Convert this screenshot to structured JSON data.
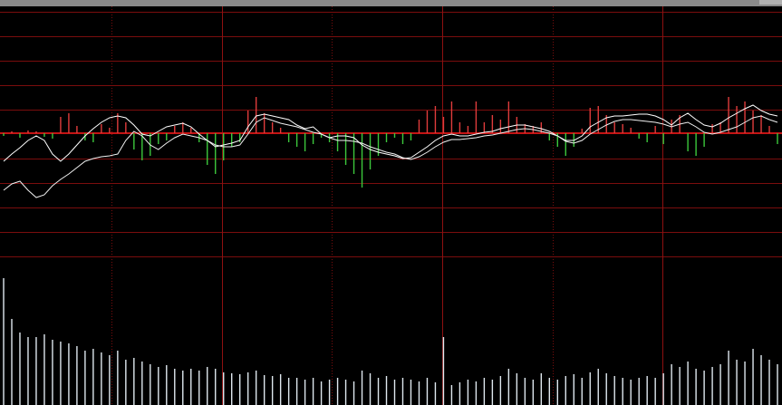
{
  "chart_data": [
    {
      "type": "line",
      "ylim": [
        -140,
        140
      ],
      "color": "#e03c3c",
      "negative_color": "#3cc83c",
      "series": [
        {
          "type": "bar",
          "color": "#e03c3c",
          "values": [
            -3,
            2,
            -5,
            3,
            2,
            -4,
            -6,
            18,
            22,
            8,
            -8,
            -10,
            10,
            6,
            22,
            12,
            -18,
            -30,
            -25,
            -12,
            -8,
            8,
            12,
            6,
            -10,
            -35,
            -45,
            -30,
            -15,
            -10,
            25,
            40,
            22,
            12,
            6,
            -10,
            -15,
            -20,
            -12,
            -5,
            -10,
            -20,
            -35,
            -45,
            -60,
            -40,
            -25,
            -10,
            -5,
            -12,
            -8,
            15,
            25,
            30,
            18,
            35,
            12,
            8,
            35,
            12,
            20,
            15,
            35,
            18,
            10,
            8,
            12,
            -8,
            -15,
            -25,
            -15,
            5,
            28,
            30,
            20,
            12,
            10,
            6,
            -6,
            -10,
            8,
            -12,
            15,
            20,
            -20,
            -25,
            -15,
            10,
            12,
            40,
            30,
            35,
            25,
            20,
            8,
            -12
          ]
        },
        {
          "type": "line",
          "color": "#ffffff",
          "values": [
            -31,
            -23,
            -16,
            -8,
            -3,
            -8,
            -23,
            -31,
            -23,
            -13,
            -3,
            5,
            12,
            17,
            19,
            17,
            9,
            -1,
            -3,
            2,
            7,
            9,
            11,
            7,
            -1,
            -8,
            -15,
            -13,
            -11,
            -8,
            7,
            19,
            21,
            19,
            17,
            15,
            9,
            5,
            7,
            -1,
            -5,
            -3,
            -3,
            -5,
            -13,
            -18,
            -21,
            -23,
            -25,
            -28,
            -27,
            -21,
            -15,
            -8,
            -3,
            -1,
            -3,
            -3,
            -1,
            1,
            2,
            5,
            7,
            9,
            9,
            7,
            5,
            2,
            -3,
            -8,
            -8,
            -3,
            7,
            12,
            17,
            19,
            19,
            20,
            21,
            21,
            19,
            15,
            9,
            17,
            22,
            15,
            9,
            7,
            11,
            17,
            22,
            27,
            31,
            25,
            21,
            19
          ]
        },
        {
          "type": "line",
          "color": "#f0f0f0",
          "values": [
            -63,
            -56,
            -53,
            -63,
            -71,
            -68,
            -58,
            -51,
            -45,
            -38,
            -31,
            -28,
            -26,
            -25,
            -23,
            -8,
            2,
            -3,
            -13,
            -18,
            -11,
            -5,
            -1,
            -3,
            -5,
            -8,
            -13,
            -15,
            -15,
            -13,
            -1,
            12,
            17,
            14,
            11,
            9,
            7,
            4,
            1,
            -1,
            -5,
            -8,
            -8,
            -9,
            -11,
            -15,
            -18,
            -21,
            -23,
            -27,
            -29,
            -26,
            -21,
            -15,
            -10,
            -7,
            -7,
            -6,
            -5,
            -3,
            -2,
            0,
            2,
            4,
            5,
            4,
            2,
            0,
            -3,
            -9,
            -11,
            -8,
            -1,
            4,
            9,
            13,
            15,
            15,
            14,
            13,
            12,
            10,
            7,
            10,
            12,
            7,
            1,
            -1,
            1,
            4,
            7,
            12,
            17,
            19,
            15,
            12
          ]
        }
      ]
    },
    {
      "type": "bar",
      "ylim": [
        0,
        150
      ],
      "color": "#dfe8ef",
      "values": [
        140,
        95,
        80,
        75,
        75,
        78,
        72,
        70,
        68,
        65,
        60,
        62,
        58,
        55,
        60,
        50,
        52,
        48,
        45,
        42,
        44,
        40,
        38,
        40,
        38,
        42,
        40,
        36,
        35,
        34,
        36,
        38,
        33,
        32,
        34,
        30,
        30,
        28,
        30,
        26,
        28,
        30,
        28,
        26,
        38,
        35,
        30,
        32,
        28,
        30,
        28,
        26,
        30,
        25,
        75,
        22,
        25,
        28,
        26,
        30,
        28,
        32,
        40,
        35,
        30,
        28,
        35,
        30,
        28,
        32,
        34,
        30,
        36,
        40,
        35,
        32,
        30,
        28,
        30,
        32,
        30,
        35,
        45,
        42,
        48,
        40,
        38,
        42,
        45,
        60,
        50,
        48,
        62,
        55,
        50,
        45
      ]
    }
  ]
}
